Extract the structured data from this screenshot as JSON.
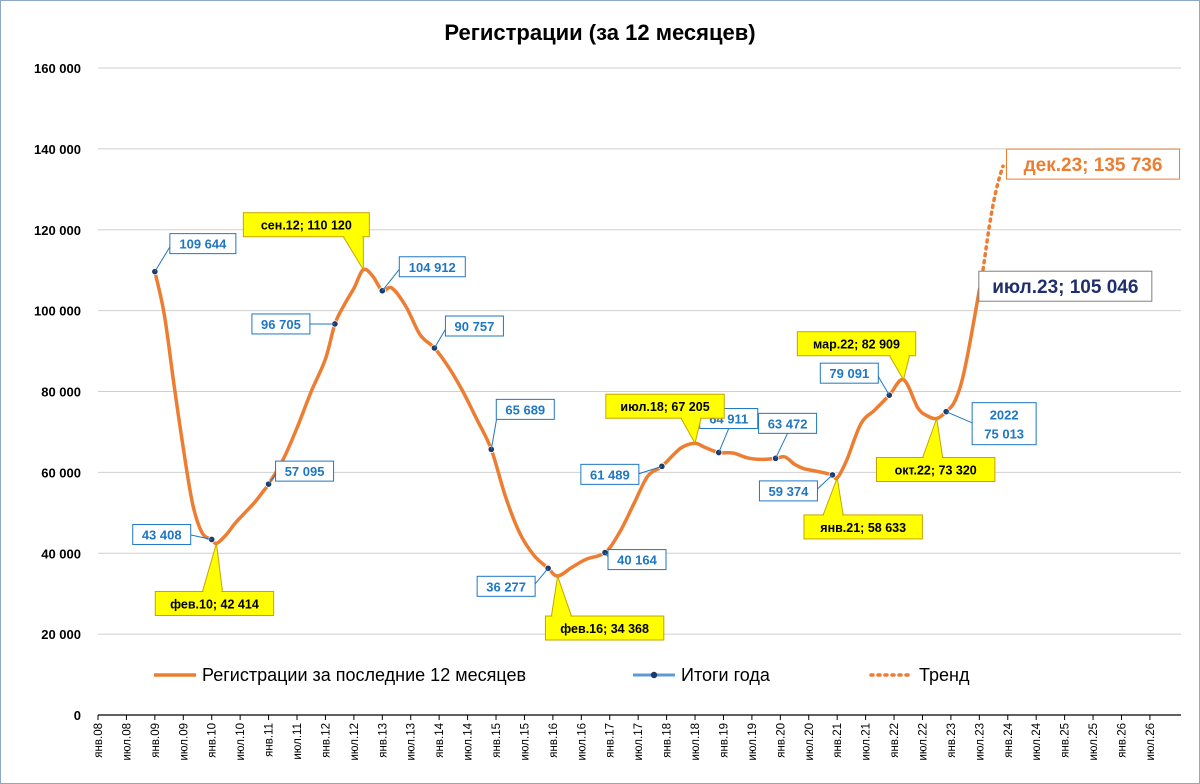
{
  "chart_data": {
    "type": "line",
    "title": "Регистрации (за 12 месяцев)",
    "yticks": [
      "0",
      "20 000",
      "40 000",
      "60 000",
      "80 000",
      "100 000",
      "120 000",
      "140 000",
      "160 000"
    ],
    "ylim": [
      0,
      160000
    ],
    "xticks": [
      "янв.08",
      "июл.08",
      "янв.09",
      "июл.09",
      "янв.10",
      "июл.10",
      "янв.11",
      "июл.11",
      "янв.12",
      "июл.12",
      "янв.13",
      "июл.13",
      "янв.14",
      "июл.14",
      "янв.15",
      "июл.15",
      "янв.16",
      "июл.16",
      "янв.17",
      "июл.17",
      "янв.18",
      "июл.18",
      "янв.19",
      "июл.19",
      "янв.20",
      "июл.20",
      "янв.21",
      "июл.21",
      "янв.22",
      "июл.22",
      "янв.23",
      "июл.23",
      "янв.24",
      "июл.24",
      "янв.25",
      "июл.25",
      "янв.26",
      "июл.26"
    ],
    "grid": true,
    "legend_position": "bottom",
    "legend": [
      {
        "key": "main",
        "label": "Регистрации за последние 12 месяцев",
        "color": "#ed7d31",
        "style": "solid"
      },
      {
        "key": "annual",
        "label": "Итоги года",
        "color": "#5b9bd5",
        "style": "marker"
      },
      {
        "key": "trend",
        "label": "Тренд",
        "color": "#ed7d31",
        "style": "dotted"
      }
    ],
    "series": [
      {
        "name": "Регистрации за последние 12 месяцев",
        "color": "#ed7d31",
        "points": [
          [
            "янв.09",
            109644
          ],
          [
            "мар.09",
            99000
          ],
          [
            "май.09",
            82000
          ],
          [
            "июл.09",
            66000
          ],
          [
            "сен.09",
            52000
          ],
          [
            "ноя.09",
            45000
          ],
          [
            "янв.10",
            43408
          ],
          [
            "фев.10",
            42414
          ],
          [
            "апр.10",
            44500
          ],
          [
            "июн.10",
            47500
          ],
          [
            "авг.10",
            50000
          ],
          [
            "окт.10",
            52500
          ],
          [
            "дек.10",
            55500
          ],
          [
            "янв.11",
            57095
          ],
          [
            "апр.11",
            63000
          ],
          [
            "июл.11",
            71000
          ],
          [
            "окт.11",
            80000
          ],
          [
            "янв.12",
            88000
          ],
          [
            "мар.12",
            96705
          ],
          [
            "май.12",
            101500
          ],
          [
            "июл.12",
            105500
          ],
          [
            "сен.12",
            110120
          ],
          [
            "ноя.12",
            108500
          ],
          [
            "янв.13",
            104912
          ],
          [
            "мар.13",
            105600
          ],
          [
            "июн.13",
            101000
          ],
          [
            "сен.13",
            94000
          ],
          [
            "дек.13",
            90757
          ],
          [
            "мар.14",
            86000
          ],
          [
            "июн.14",
            80000
          ],
          [
            "сен.14",
            73000
          ],
          [
            "дек.14",
            65689
          ],
          [
            "мар.15",
            54000
          ],
          [
            "июн.15",
            45000
          ],
          [
            "сен.15",
            39500
          ],
          [
            "дек.15",
            36277
          ],
          [
            "фев.16",
            34368
          ],
          [
            "май.16",
            36500
          ],
          [
            "авг.16",
            38500
          ],
          [
            "дек.16",
            40164
          ],
          [
            "мар.17",
            45000
          ],
          [
            "июн.17",
            52000
          ],
          [
            "сен.17",
            59000
          ],
          [
            "дек.17",
            61489
          ],
          [
            "апр.18",
            66000
          ],
          [
            "июл.18",
            67205
          ],
          [
            "сен.18",
            66200
          ],
          [
            "дек.18",
            64911
          ],
          [
            "мар.19",
            64800
          ],
          [
            "июн.19",
            63600
          ],
          [
            "сен.19",
            63200
          ],
          [
            "дек.19",
            63472
          ],
          [
            "фев.20",
            63800
          ],
          [
            "апр.20",
            62000
          ],
          [
            "июн.20",
            60900
          ],
          [
            "сен.20",
            60200
          ],
          [
            "дек.20",
            59374
          ],
          [
            "янв.21",
            58633
          ],
          [
            "мар.21",
            63000
          ],
          [
            "июн.21",
            72000
          ],
          [
            "сен.21",
            75500
          ],
          [
            "дек.21",
            79091
          ],
          [
            "мар.22",
            82909
          ],
          [
            "июн.22",
            76000
          ],
          [
            "авг.22",
            74000
          ],
          [
            "окт.22",
            73320
          ],
          [
            "дек.22",
            75013
          ],
          [
            "фев.23",
            78000
          ],
          [
            "апр.23",
            86000
          ],
          [
            "июл.23",
            105046
          ]
        ]
      },
      {
        "name": "Итоги года",
        "color": "#1f3864",
        "points": [
          [
            "янв.09",
            109644
          ],
          [
            "янв.10",
            43408
          ],
          [
            "янв.11",
            57095
          ],
          [
            "мар.12",
            96705
          ],
          [
            "янв.13",
            104912
          ],
          [
            "дек.13",
            90757
          ],
          [
            "дек.14",
            65689
          ],
          [
            "дек.15",
            36277
          ],
          [
            "дек.16",
            40164
          ],
          [
            "дек.17",
            61489
          ],
          [
            "дек.18",
            64911
          ],
          [
            "дек.19",
            63472
          ],
          [
            "дек.20",
            59374
          ],
          [
            "дек.21",
            79091
          ],
          [
            "дек.22",
            75013
          ]
        ]
      },
      {
        "name": "Тренд",
        "color": "#ed7d31",
        "points": [
          [
            "июл.23",
            105046
          ],
          [
            "дек.23",
            135736
          ]
        ]
      }
    ],
    "annotations": [
      {
        "id": "a2009",
        "style": "blue",
        "text": "109 644",
        "at": [
          "янв.09",
          109644
        ]
      },
      {
        "id": "a2010",
        "style": "blue",
        "text": "43 408",
        "at": [
          "янв.10",
          43408
        ]
      },
      {
        "id": "a2011",
        "style": "blue",
        "text": "57 095",
        "at": [
          "янв.11",
          57095
        ]
      },
      {
        "id": "a2012",
        "style": "blue",
        "text": "96 705",
        "at": [
          "мар.12",
          96705
        ]
      },
      {
        "id": "a2013",
        "style": "blue",
        "text": "104 912",
        "at": [
          "янв.13",
          104912
        ]
      },
      {
        "id": "a2014",
        "style": "blue",
        "text": "90 757",
        "at": [
          "дек.13",
          90757
        ]
      },
      {
        "id": "a2015",
        "style": "blue",
        "text": "65 689",
        "at": [
          "дек.14",
          65689
        ]
      },
      {
        "id": "a2016",
        "style": "blue",
        "text": "36 277",
        "at": [
          "дек.15",
          36277
        ]
      },
      {
        "id": "a2017",
        "style": "blue",
        "text": "40 164",
        "at": [
          "дек.16",
          40164
        ]
      },
      {
        "id": "a2018",
        "style": "blue",
        "text": "61 489",
        "at": [
          "дек.17",
          61489
        ]
      },
      {
        "id": "a2019",
        "style": "blue",
        "text": "64 911",
        "at": [
          "дек.18",
          64911
        ]
      },
      {
        "id": "a2020",
        "style": "blue",
        "text": "63 472",
        "at": [
          "дек.19",
          63472
        ]
      },
      {
        "id": "a2021",
        "style": "blue",
        "text": "59 374",
        "at": [
          "дек.20",
          59374
        ]
      },
      {
        "id": "a2022",
        "style": "blue",
        "text": "79 091",
        "at": [
          "дек.21",
          79091
        ]
      },
      {
        "id": "a2023",
        "style": "blue2",
        "text": "2022",
        "text2": "75 013",
        "at": [
          "дек.22",
          75013
        ]
      },
      {
        "id": "y1",
        "style": "yellow",
        "text": "фев.10; 42 414",
        "at": [
          "фев.10",
          42414
        ]
      },
      {
        "id": "y2",
        "style": "yellow",
        "text": "сен.12; 110 120",
        "at": [
          "сен.12",
          110120
        ]
      },
      {
        "id": "y3",
        "style": "yellow",
        "text": "фев.16; 34 368",
        "at": [
          "фев.16",
          34368
        ]
      },
      {
        "id": "y4",
        "style": "yellow",
        "text": "июл.18; 67 205",
        "at": [
          "июл.18",
          67205
        ]
      },
      {
        "id": "y5",
        "style": "yellow",
        "text": "янв.21; 58 633",
        "at": [
          "янв.21",
          58633
        ]
      },
      {
        "id": "y6",
        "style": "yellow",
        "text": "мар.22; 82 909",
        "at": [
          "мар.22",
          82909
        ]
      },
      {
        "id": "y7",
        "style": "yellow",
        "text": "окт.22; 73 320",
        "at": [
          "окт.22",
          73320
        ]
      },
      {
        "id": "big1",
        "style": "orange-big",
        "text": "дек.23; 135 736",
        "at": [
          "дек.23",
          135736
        ]
      },
      {
        "id": "big2",
        "style": "navy-big",
        "text": "июл.23; 105 046",
        "at": [
          "июл.23",
          105046
        ]
      }
    ]
  }
}
